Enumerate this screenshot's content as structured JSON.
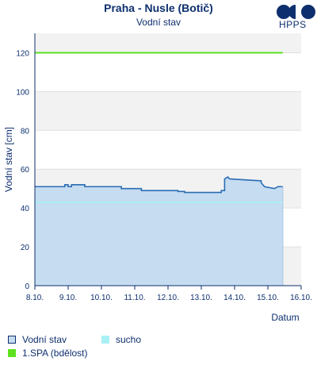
{
  "header": {
    "title": "Praha - Nusle (Botič)",
    "subtitle": "Vodní stav",
    "logo_text": "HPPS"
  },
  "chart_data": {
    "type": "area",
    "title": "Praha - Nusle (Botič)",
    "subtitle": "Vodní stav",
    "xlabel": "Datum",
    "ylabel": "Vodní stav [cm]",
    "ylim": [
      0,
      130
    ],
    "yticks": [
      0,
      20,
      40,
      60,
      80,
      100,
      120
    ],
    "xlim": [
      0,
      8.0
    ],
    "x_tick_labels": [
      "8.10.",
      "9.10.",
      "10.10.",
      "11.10.",
      "12.10.",
      "13.10.",
      "14.10.",
      "15.10.",
      "16.10."
    ],
    "x_ticks": [
      0,
      1,
      2,
      3,
      4,
      5,
      6,
      7,
      8
    ],
    "grid": "horizontal bands",
    "series": [
      {
        "name": "Vodní stav",
        "kind": "area",
        "color": "#2a6db5",
        "fill": "#c6dcf1",
        "points": [
          [
            0.0,
            51
          ],
          [
            0.9,
            51
          ],
          [
            0.9,
            52
          ],
          [
            1.0,
            52
          ],
          [
            1.0,
            51
          ],
          [
            1.1,
            51
          ],
          [
            1.1,
            52
          ],
          [
            1.5,
            52
          ],
          [
            1.5,
            51
          ],
          [
            2.6,
            51
          ],
          [
            2.6,
            50
          ],
          [
            3.2,
            50
          ],
          [
            3.2,
            49
          ],
          [
            4.3,
            49
          ],
          [
            4.3,
            48.5
          ],
          [
            4.5,
            48.5
          ],
          [
            4.5,
            48
          ],
          [
            5.6,
            48
          ],
          [
            5.6,
            49
          ],
          [
            5.7,
            49
          ],
          [
            5.7,
            55
          ],
          [
            5.8,
            56
          ],
          [
            5.85,
            55
          ],
          [
            6.8,
            54
          ],
          [
            6.8,
            53
          ],
          [
            6.9,
            51
          ],
          [
            7.2,
            50
          ],
          [
            7.3,
            51
          ],
          [
            7.45,
            51
          ],
          [
            7.45,
            51
          ]
        ]
      },
      {
        "name": "sucho",
        "kind": "line",
        "color": "#a8f0f4",
        "value": 43,
        "x_range": [
          0.0,
          7.45
        ]
      },
      {
        "name": "1.SPA (bdělost)",
        "kind": "line",
        "color": "#5ee21f",
        "value": 120,
        "x_range": [
          0.0,
          7.45
        ]
      }
    ],
    "legend": [
      {
        "label": "Vodní stav",
        "color": "#c6dcf1",
        "border": "#0d2f6e"
      },
      {
        "label": "sucho",
        "color": "#a8f0f4",
        "border": "#a8f0f4"
      },
      {
        "label": "1.SPA (bdělost)",
        "color": "#5ee21f",
        "border": "#5ee21f"
      }
    ],
    "legend_position": "bottom-left"
  }
}
